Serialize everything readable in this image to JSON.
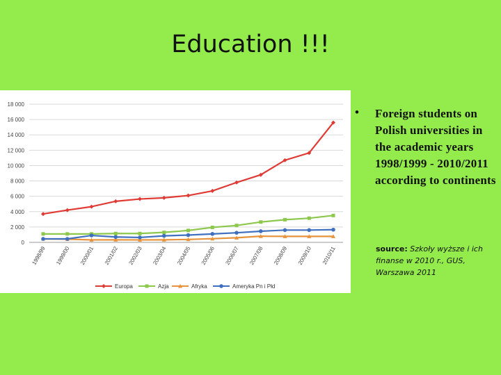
{
  "slide": {
    "title": "Education !!!",
    "bullet": "Foreign students on Polish universities in the academic years 1998/1999 - 2010/2011 according to continents",
    "source_label": "source:",
    "source_text": " Szkoły wyższe i ich finanse w 2010 r., GUS, Warszawa 2011"
  },
  "chart_data": {
    "type": "line",
    "categories": [
      "1998/99",
      "1999/00",
      "2000/01",
      "2001/02",
      "2002/03",
      "2003/04",
      "2004/05",
      "2005/06",
      "2006/07",
      "2007/08",
      "2008/09",
      "2009/10",
      "2010/11"
    ],
    "y_ticks": [
      "0",
      "2 000",
      "4 000",
      "6 000",
      "8 000",
      "10 000",
      "12 000",
      "14 000",
      "16 000",
      "18 000"
    ],
    "ylim": [
      0,
      18000
    ],
    "grid": true,
    "legend_position": "bottom",
    "series": [
      {
        "name": "Europa",
        "color": "#e03a35",
        "marker": "diamond",
        "values": [
          3700,
          4200,
          4650,
          5350,
          5650,
          5800,
          6100,
          6700,
          7800,
          8800,
          10700,
          11650,
          15600
        ]
      },
      {
        "name": "Azja",
        "color": "#8cc84b",
        "marker": "square",
        "values": [
          1100,
          1100,
          1100,
          1150,
          1150,
          1300,
          1550,
          1950,
          2200,
          2650,
          2950,
          3150,
          3500
        ]
      },
      {
        "name": "Afryka",
        "color": "#e8923c",
        "marker": "triangle",
        "values": [
          450,
          420,
          320,
          330,
          320,
          330,
          380,
          480,
          600,
          800,
          780,
          780,
          780
        ]
      },
      {
        "name": "Ameryka Pn i Płd",
        "color": "#3f6fbf",
        "marker": "circle",
        "values": [
          450,
          450,
          900,
          700,
          640,
          850,
          950,
          1100,
          1250,
          1450,
          1600,
          1600,
          1650
        ]
      }
    ]
  }
}
